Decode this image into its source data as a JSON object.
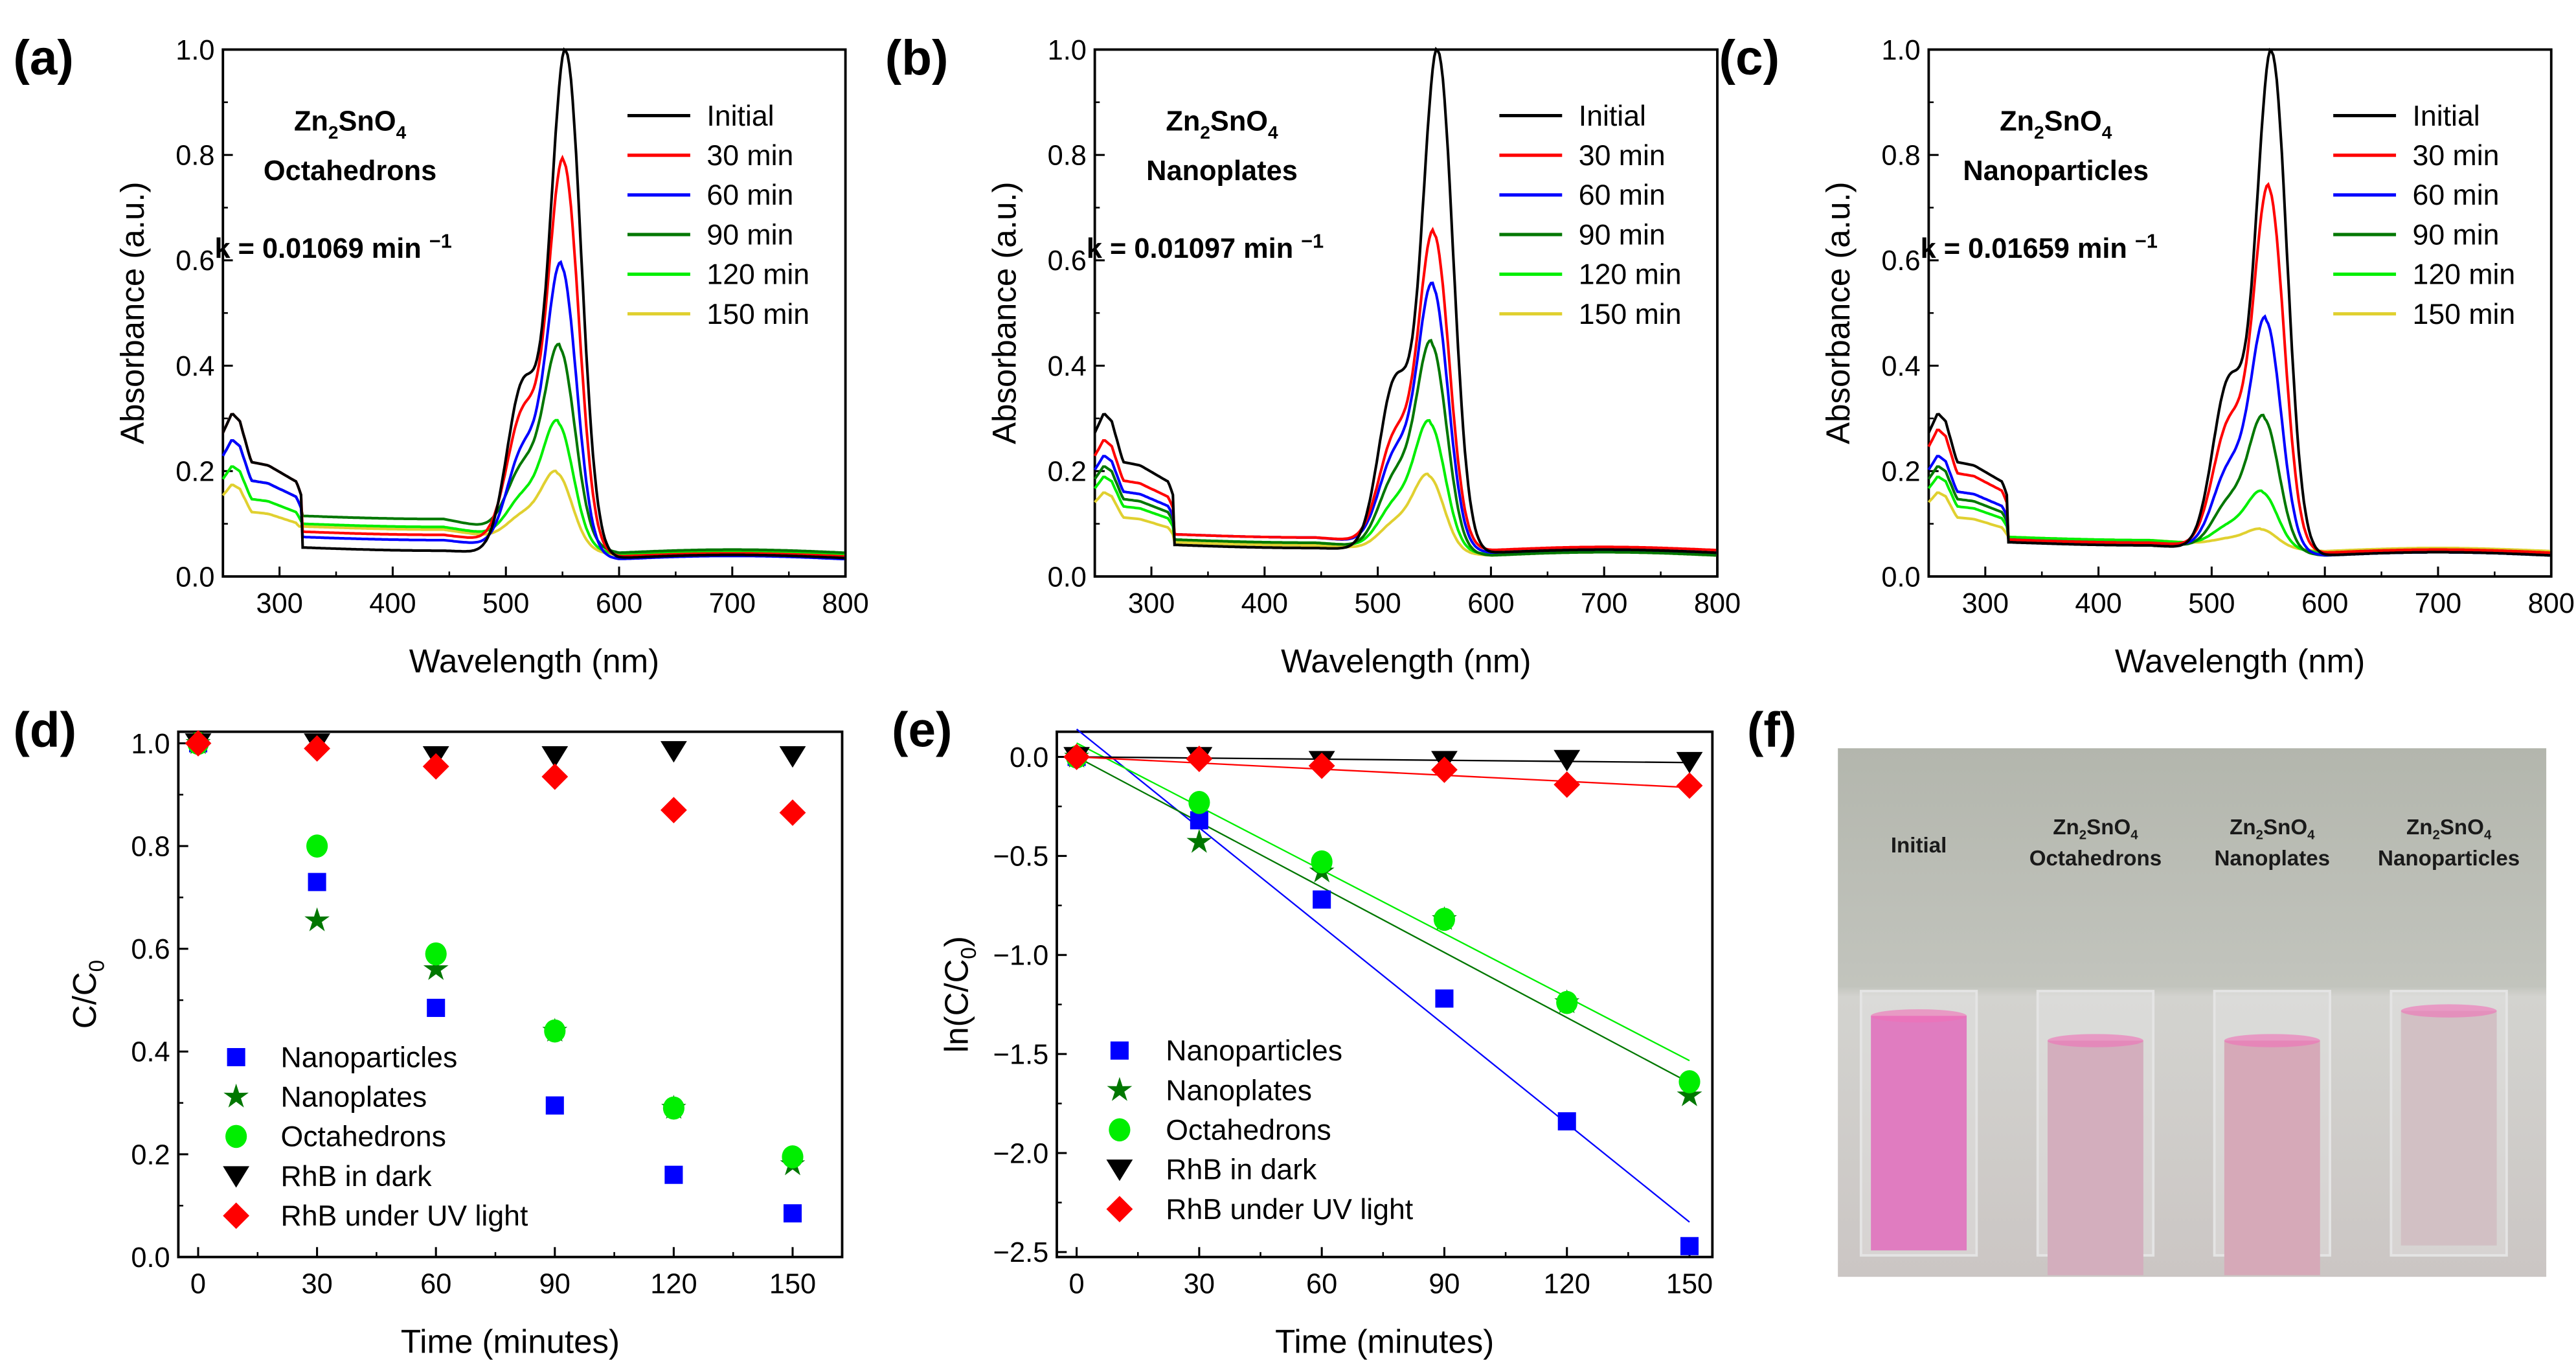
{
  "chart_data": [
    {
      "panel": "(a)",
      "type": "line",
      "xlabel": "Wavelength (nm)",
      "ylabel": "Absorbance (a.u.)",
      "xlim": [
        250,
        800
      ],
      "ylim": [
        0,
        1.0
      ],
      "xticks": [
        300,
        400,
        500,
        600,
        700,
        800
      ],
      "yticks": [
        0.0,
        0.2,
        0.4,
        0.6,
        0.8,
        1.0
      ],
      "material": "Octahedrons",
      "k_label": "k = 0.01069 min",
      "k_exp": "−1",
      "series": [
        {
          "name": "Initial",
          "color": "#000000",
          "peak": 1.0,
          "uv": 0.31,
          "plateau": 0.055,
          "tail": 0.035
        },
        {
          "name": "30 min",
          "color": "#ff0000",
          "peak": 0.795,
          "uv": 0.31,
          "plateau": 0.085,
          "tail": 0.038
        },
        {
          "name": "60 min",
          "color": "#0000ff",
          "peak": 0.595,
          "uv": 0.26,
          "plateau": 0.075,
          "tail": 0.033
        },
        {
          "name": "90 min",
          "color": "#007700",
          "peak": 0.445,
          "uv": 0.26,
          "plateau": 0.115,
          "tail": 0.045
        },
        {
          "name": "120 min",
          "color": "#00ee00",
          "peak": 0.3,
          "uv": 0.21,
          "plateau": 0.1,
          "tail": 0.042
        },
        {
          "name": "150 min",
          "color": "#e0d030",
          "peak": 0.205,
          "uv": 0.175,
          "plateau": 0.095,
          "tail": 0.04
        }
      ]
    },
    {
      "panel": "(b)",
      "type": "line",
      "xlabel": "Wavelength (nm)",
      "ylabel": "Absorbance (a.u.)",
      "xlim": [
        250,
        800
      ],
      "ylim": [
        0,
        1.0
      ],
      "xticks": [
        300,
        400,
        500,
        600,
        700,
        800
      ],
      "yticks": [
        0.0,
        0.2,
        0.4,
        0.6,
        0.8,
        1.0
      ],
      "material": "Nanoplates",
      "k_label": "k = 0.01097 min",
      "k_exp": "−1",
      "series": [
        {
          "name": "Initial",
          "color": "#000000",
          "peak": 1.0,
          "uv": 0.31,
          "plateau": 0.06,
          "tail": 0.045
        },
        {
          "name": "30 min",
          "color": "#ff0000",
          "peak": 0.655,
          "uv": 0.26,
          "plateau": 0.08,
          "tail": 0.05
        },
        {
          "name": "60 min",
          "color": "#0000ff",
          "peak": 0.555,
          "uv": 0.23,
          "plateau": 0.08,
          "tail": 0.045
        },
        {
          "name": "90 min",
          "color": "#007700",
          "peak": 0.445,
          "uv": 0.21,
          "plateau": 0.07,
          "tail": 0.04
        },
        {
          "name": "120 min",
          "color": "#00ee00",
          "peak": 0.295,
          "uv": 0.19,
          "plateau": 0.07,
          "tail": 0.042
        },
        {
          "name": "150 min",
          "color": "#e0d030",
          "peak": 0.195,
          "uv": 0.16,
          "plateau": 0.065,
          "tail": 0.04
        }
      ]
    },
    {
      "panel": "(c)",
      "type": "line",
      "xlabel": "Wavelength (nm)",
      "ylabel": "Absorbance (a.u.)",
      "xlim": [
        250,
        800
      ],
      "ylim": [
        0,
        1.0
      ],
      "xticks": [
        300,
        400,
        500,
        600,
        700,
        800
      ],
      "yticks": [
        0.0,
        0.2,
        0.4,
        0.6,
        0.8,
        1.0
      ],
      "material": "Nanoparticles",
      "k_label": "k = 0.01659 min",
      "k_exp": "−1",
      "series": [
        {
          "name": "Initial",
          "color": "#000000",
          "peak": 1.0,
          "uv": 0.31,
          "plateau": 0.065,
          "tail": 0.04
        },
        {
          "name": "30 min",
          "color": "#ff0000",
          "peak": 0.74,
          "uv": 0.28,
          "plateau": 0.07,
          "tail": 0.045
        },
        {
          "name": "60 min",
          "color": "#0000ff",
          "peak": 0.49,
          "uv": 0.23,
          "plateau": 0.07,
          "tail": 0.04
        },
        {
          "name": "90 min",
          "color": "#007700",
          "peak": 0.305,
          "uv": 0.21,
          "plateau": 0.07,
          "tail": 0.04
        },
        {
          "name": "120 min",
          "color": "#00ee00",
          "peak": 0.165,
          "uv": 0.19,
          "plateau": 0.075,
          "tail": 0.045
        },
        {
          "name": "150 min",
          "color": "#e0d030",
          "peak": 0.095,
          "uv": 0.16,
          "plateau": 0.075,
          "tail": 0.048
        }
      ]
    },
    {
      "panel": "(d)",
      "type": "scatter",
      "xlabel": "Time (minutes)",
      "ylabel_main": "C/C",
      "ylabel_sub": "0",
      "xlim": [
        -5,
        162.5
      ],
      "ylim": [
        0,
        1.0225
      ],
      "xticks": [
        0,
        30,
        60,
        90,
        120,
        150
      ],
      "yticks": [
        0.0,
        0.2,
        0.4,
        0.6,
        0.8,
        1.0
      ],
      "x": [
        0,
        30,
        60,
        90,
        120,
        150
      ],
      "series": [
        {
          "name": "Nanoparticles",
          "marker": "square",
          "color": "#0000ff",
          "values": [
            1.0,
            0.73,
            0.485,
            0.295,
            0.16,
            0.085
          ]
        },
        {
          "name": "Nanoplates",
          "marker": "star",
          "color": "#007700",
          "values": [
            1.0,
            0.655,
            0.56,
            0.44,
            0.29,
            0.18
          ]
        },
        {
          "name": "Octahedrons",
          "marker": "circle",
          "color": "#00ee00",
          "values": [
            1.0,
            0.8,
            0.59,
            0.44,
            0.29,
            0.195
          ]
        },
        {
          "name": "RhB in dark",
          "marker": "triangle-down",
          "color": "#000000",
          "values": [
            1.0,
            1.0,
            0.975,
            0.975,
            0.985,
            0.975
          ]
        },
        {
          "name": "RhB under UV light",
          "marker": "diamond",
          "color": "#ff0000",
          "values": [
            1.0,
            0.99,
            0.955,
            0.935,
            0.87,
            0.865
          ]
        }
      ]
    },
    {
      "panel": "(e)",
      "type": "scatter",
      "xlabel": "Time (minutes)",
      "ylabel_main": "ln(C/C",
      "ylabel_sub": "0",
      "ylabel_end": ")",
      "xlim": [
        -4.85,
        155.6
      ],
      "ylim": [
        -2.525,
        0.127
      ],
      "xticks": [
        0,
        30,
        60,
        90,
        120,
        150
      ],
      "yticks": [
        0.0,
        -0.5,
        -1.0,
        -1.5,
        -2.0,
        -2.5
      ],
      "x": [
        0,
        30,
        60,
        90,
        120,
        150
      ],
      "series": [
        {
          "name": "Nanoparticles",
          "marker": "square",
          "color": "#0000ff",
          "values": [
            0,
            -0.32,
            -0.72,
            -1.22,
            -1.84,
            -2.47
          ],
          "fit": {
            "slope": -0.01659,
            "intercept": 0.14
          }
        },
        {
          "name": "Nanoplates",
          "marker": "star",
          "color": "#007700",
          "values": [
            0,
            -0.43,
            -0.58,
            -0.82,
            -1.24,
            -1.71
          ],
          "fit": {
            "slope": -0.01097,
            "intercept": 0.0
          }
        },
        {
          "name": "Octahedrons",
          "marker": "circle",
          "color": "#00ee00",
          "values": [
            0,
            -0.23,
            -0.53,
            -0.82,
            -1.24,
            -1.64
          ],
          "fit": {
            "slope": -0.01069,
            "intercept": 0.07
          }
        },
        {
          "name": "RhB in dark",
          "marker": "triangle-down",
          "color": "#000000",
          "values": [
            0,
            0,
            -0.02,
            -0.02,
            -0.015,
            -0.025
          ],
          "fit": {
            "slope": -0.00019,
            "intercept": 0.0
          }
        },
        {
          "name": "RhB under UV light",
          "marker": "diamond",
          "color": "#ff0000",
          "values": [
            0,
            -0.01,
            -0.045,
            -0.065,
            -0.14,
            -0.145
          ],
          "fit": {
            "slope": -0.00103,
            "intercept": 0.0
          }
        }
      ]
    }
  ],
  "formula": {
    "a": "Zn",
    "b": "2",
    "c": "SnO",
    "d": "4"
  },
  "photo": {
    "panel": "(f)",
    "cuvettes": [
      {
        "label_top": "",
        "label": "Initial",
        "color": "#e07cc0"
      },
      {
        "label_top": "Zn2SnO4",
        "label": "Octahedrons",
        "color": "#d3aebd"
      },
      {
        "label_top": "Zn2SnO4",
        "label": "Nanoplates",
        "color": "#d6a9b8"
      },
      {
        "label_top": "Zn2SnO4",
        "label": "Nanoparticles",
        "color": "#d2c0c4"
      }
    ]
  }
}
